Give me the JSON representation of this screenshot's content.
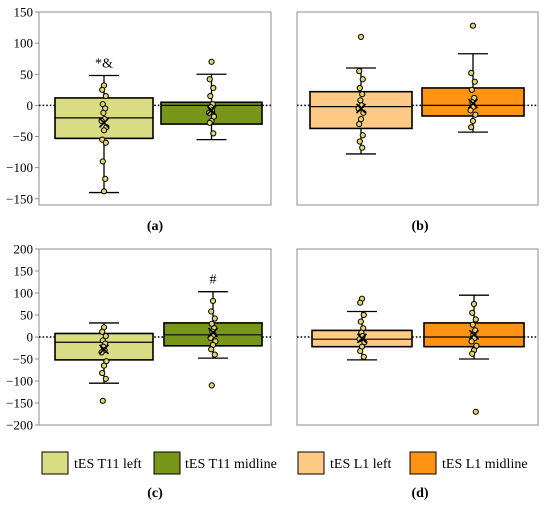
{
  "colors": {
    "t11_left": "#D9DC82",
    "t11_midline": "#77961A",
    "l1_left": "#FFCA85",
    "l1_midline": "#FF9313",
    "point_fill": "#E2D66B",
    "outline": "#000000",
    "frame": "#8C8C8C"
  },
  "legend": {
    "items": [
      {
        "label": "tES T11 left",
        "color_key": "t11_left"
      },
      {
        "label": "tES T11 midline",
        "color_key": "t11_midline"
      },
      {
        "label": "tES L1 left",
        "color_key": "l1_left"
      },
      {
        "label": "tES L1 midline",
        "color_key": "l1_midline"
      }
    ]
  },
  "chart_data": [
    {
      "type": "box",
      "panel_label": "(a)",
      "ylim": [
        -160,
        150
      ],
      "yticks": [
        -150,
        -100,
        -50,
        0,
        50,
        100,
        150
      ],
      "ytick_labels": [
        "−150",
        "−100",
        "−50",
        "0",
        "50",
        "100",
        "150"
      ],
      "zero_line": true,
      "boxes": [
        {
          "group": "tES T11 left",
          "color_key": "t11_left",
          "min": -140,
          "q1": -53,
          "median": -20,
          "q3": 12,
          "max": 48,
          "mean": -28,
          "points": [
            32,
            25,
            15,
            2,
            -5,
            -12,
            -22,
            -25,
            -35,
            -40,
            -55,
            -60,
            -90,
            -118,
            -138
          ],
          "annotation": "*&"
        },
        {
          "group": "tES T11 midline",
          "color_key": "t11_midline",
          "min": -55,
          "q1": -30,
          "median": 0,
          "q3": 5,
          "max": 50,
          "mean": -8,
          "points": [
            70,
            42,
            28,
            15,
            2,
            -3,
            -8,
            -12,
            -18,
            -25,
            -28,
            -45
          ],
          "annotation": ""
        }
      ]
    },
    {
      "type": "box",
      "panel_label": "(b)",
      "ylim": [
        -160,
        150
      ],
      "zero_line": true,
      "boxes": [
        {
          "group": "tES L1 left",
          "color_key": "l1_left",
          "min": -78,
          "q1": -37,
          "median": -2,
          "q3": 22,
          "max": 60,
          "mean": -5,
          "points": [
            110,
            55,
            42,
            28,
            18,
            8,
            0,
            -5,
            -12,
            -22,
            -30,
            -48,
            -58,
            -68
          ],
          "annotation": ""
        },
        {
          "group": "tES L1 midline",
          "color_key": "l1_midline",
          "min": -43,
          "q1": -17,
          "median": 0,
          "q3": 28,
          "max": 83,
          "mean": 3,
          "points": [
            128,
            52,
            38,
            25,
            12,
            5,
            -2,
            -8,
            -15,
            -25,
            -35
          ],
          "annotation": ""
        }
      ]
    },
    {
      "type": "box",
      "panel_label": "(c)",
      "ylim": [
        -200,
        200
      ],
      "yticks": [
        -200,
        -150,
        -100,
        -50,
        0,
        50,
        100,
        150,
        200
      ],
      "ytick_labels": [
        "−200",
        "−150",
        "−100",
        "−50",
        "0",
        "50",
        "100",
        "150",
        "200"
      ],
      "zero_line": true,
      "boxes": [
        {
          "group": "tES T11 left",
          "color_key": "t11_left",
          "min": -105,
          "q1": -52,
          "median": -12,
          "q3": 8,
          "max": 32,
          "mean": -28,
          "points": [
            22,
            12,
            2,
            -8,
            -15,
            -22,
            -30,
            -35,
            -55,
            -65,
            -82,
            -95,
            -145
          ],
          "annotation": ""
        },
        {
          "group": "tES T11 midline",
          "color_key": "t11_midline",
          "min": -48,
          "q1": -20,
          "median": 5,
          "q3": 32,
          "max": 103,
          "mean": 10,
          "points": [
            82,
            58,
            42,
            30,
            20,
            12,
            5,
            -2,
            -10,
            -18,
            -28,
            -40,
            -110
          ],
          "annotation": "#"
        }
      ]
    },
    {
      "type": "box",
      "panel_label": "(d)",
      "ylim": [
        -200,
        200
      ],
      "zero_line": true,
      "boxes": [
        {
          "group": "tES L1 left",
          "color_key": "l1_left",
          "min": -52,
          "q1": -22,
          "median": -5,
          "q3": 15,
          "max": 58,
          "mean": -3,
          "points": [
            87,
            78,
            50,
            35,
            20,
            10,
            2,
            -5,
            -12,
            -22,
            -32,
            -45
          ],
          "annotation": ""
        },
        {
          "group": "tES L1 midline",
          "color_key": "l1_midline",
          "min": -50,
          "q1": -22,
          "median": 0,
          "q3": 32,
          "max": 95,
          "mean": 5,
          "points": [
            75,
            55,
            40,
            28,
            15,
            5,
            -2,
            -10,
            -20,
            -30,
            -38,
            -170
          ],
          "annotation": ""
        }
      ]
    }
  ]
}
